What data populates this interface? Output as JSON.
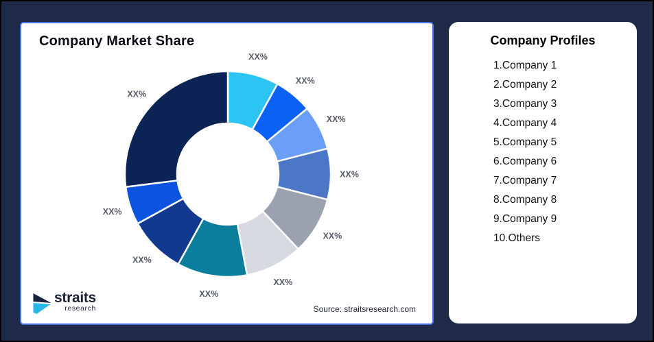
{
  "background_color": "#1E2A47",
  "chart_panel": {
    "title": "Company Market Share",
    "source": "Source: straitsresearch.com",
    "border_color": "#4A72E8"
  },
  "logo": {
    "wordmark": "straits",
    "subtitle": "research",
    "dark_color": "#16243e",
    "cyan_color": "#29B7E8"
  },
  "profiles_panel": {
    "title": "Company Profiles",
    "items": [
      "1.Company 1",
      "2.Company 2",
      "3.Company 3",
      "4.Company 4",
      "5.Company 5",
      "6.Company 6",
      "7.Company 7",
      "8.Company 8",
      "9.Company 9",
      "10.Others"
    ]
  },
  "chart_data": {
    "type": "pie",
    "subtype": "donut",
    "title": "Company Market Share",
    "start_angle_deg": 0,
    "direction": "clockwise",
    "inner_radius_ratio": 0.49,
    "legend": "none",
    "categories": [
      "Company 1",
      "Company 2",
      "Company 3",
      "Company 4",
      "Company 5",
      "Company 6",
      "Company 7",
      "Company 8",
      "Company 9",
      "Others"
    ],
    "values": [
      8,
      6,
      7,
      8,
      9,
      9,
      11,
      9,
      6,
      27
    ],
    "values_note": "shares masked in image; estimated from arc angles",
    "data_labels": [
      "XX%",
      "XX%",
      "XX%",
      "XX%",
      "XX%",
      "XX%",
      "XX%",
      "XX%",
      "XX%",
      "XX%"
    ],
    "colors": [
      "#2BC4F3",
      "#0B61F1",
      "#6B9FF7",
      "#4B77C6",
      "#9BA1AE",
      "#D6D9DF",
      "#0C7E9D",
      "#11398E",
      "#0C54E0",
      "#0C2355"
    ],
    "label_color": "#565b68",
    "slice_gap_color": "#ffffff"
  }
}
